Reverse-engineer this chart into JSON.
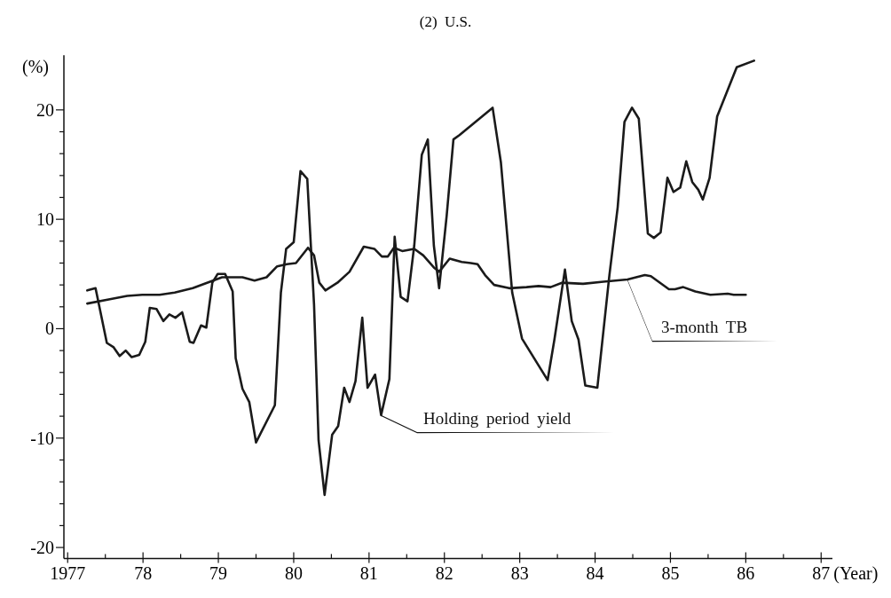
{
  "chart_data": {
    "type": "line",
    "title": "(2)  U.S.",
    "xlabel": "(Year)",
    "ylabel": "(%)",
    "xlim": [
      1976.95,
      1987.15
    ],
    "ylim": [
      -21,
      25
    ],
    "xticks": [
      1977,
      {
        "value": 1977.5,
        "label": null
      },
      {
        "value": 1978,
        "label": "78"
      },
      {
        "value": 1978.5,
        "label": null
      },
      {
        "value": 1979,
        "label": "79"
      },
      {
        "value": 1979.5,
        "label": null
      },
      {
        "value": 1980,
        "label": "80"
      },
      {
        "value": 1980.5,
        "label": null
      },
      {
        "value": 1981,
        "label": "81"
      },
      {
        "value": 1981.5,
        "label": null
      },
      {
        "value": 1982,
        "label": "82"
      },
      {
        "value": 1982.5,
        "label": null
      },
      {
        "value": 1983,
        "label": "83"
      },
      {
        "value": 1983.5,
        "label": null
      },
      {
        "value": 1984,
        "label": "84"
      },
      {
        "value": 1984.5,
        "label": null
      },
      {
        "value": 1985,
        "label": "85"
      },
      {
        "value": 1985.5,
        "label": null
      },
      {
        "value": 1986,
        "label": "86"
      },
      {
        "value": 1986.5,
        "label": null
      },
      {
        "value": 1987,
        "label": "87"
      }
    ],
    "yticks": [
      -20,
      {
        "value": -18,
        "label": null
      },
      {
        "value": -16,
        "label": null
      },
      {
        "value": -14,
        "label": null
      },
      {
        "value": -12,
        "label": null
      },
      -10,
      {
        "value": -8,
        "label": null
      },
      {
        "value": -6,
        "label": null
      },
      {
        "value": -4,
        "label": null
      },
      {
        "value": -2,
        "label": null
      },
      0,
      {
        "value": 2,
        "label": null
      },
      {
        "value": 4,
        "label": null
      },
      {
        "value": 6,
        "label": null
      },
      {
        "value": 8,
        "label": null
      },
      10,
      {
        "value": 12,
        "label": null
      },
      {
        "value": 14,
        "label": null
      },
      {
        "value": 16,
        "label": null
      },
      {
        "value": 18,
        "label": null
      },
      20
    ],
    "grid": false,
    "marker": "none",
    "line_style": "solid",
    "series": [
      {
        "name": "Holding period yield",
        "color": "#1a1a1a",
        "x": [
          1977.26,
          1977.37,
          1977.52,
          1977.61,
          1977.69,
          1977.77,
          1977.85,
          1977.95,
          1978.03,
          1978.09,
          1978.18,
          1978.27,
          1978.35,
          1978.43,
          1978.52,
          1978.62,
          1978.67,
          1978.77,
          1978.84,
          1978.92,
          1978.99,
          1979.09,
          1979.19,
          1979.23,
          1979.32,
          1979.41,
          1979.5,
          1979.75,
          1979.83,
          1979.9,
          1980.0,
          1980.09,
          1980.18,
          1980.27,
          1980.33,
          1980.41,
          1980.51,
          1980.59,
          1980.67,
          1980.74,
          1980.82,
          1980.91,
          1980.98,
          1981.08,
          1981.16,
          1981.27,
          1981.34,
          1981.42,
          1981.51,
          1981.6,
          1981.7,
          1981.78,
          1981.86,
          1981.93,
          1982.03,
          1982.12,
          1982.2,
          1982.64,
          1982.75,
          1982.9,
          1983.03,
          1983.37,
          1983.46,
          1983.6,
          1983.69,
          1983.78,
          1983.87,
          1984.03,
          1984.19,
          1984.3,
          1984.39,
          1984.49,
          1984.58,
          1984.7,
          1984.78,
          1984.87,
          1984.96,
          1985.04,
          1985.13,
          1985.21,
          1985.29,
          1985.37,
          1985.43,
          1985.52,
          1985.62,
          1985.88,
          1986.11
        ],
        "values": [
          3.5,
          3.7,
          -1.3,
          -1.7,
          -2.5,
          -2.0,
          -2.6,
          -2.4,
          -1.2,
          1.9,
          1.8,
          0.7,
          1.3,
          1.0,
          1.5,
          -1.2,
          -1.3,
          0.3,
          0.1,
          4.2,
          5.0,
          5.0,
          3.4,
          -2.7,
          -5.5,
          -6.7,
          -10.4,
          -7.0,
          3.3,
          7.3,
          7.9,
          14.4,
          13.7,
          2.2,
          -10.2,
          -15.2,
          -9.7,
          -8.9,
          -5.4,
          -6.7,
          -4.8,
          1.0,
          -5.4,
          -4.2,
          -7.9,
          -4.6,
          8.4,
          2.9,
          2.5,
          7.6,
          15.9,
          17.3,
          7.6,
          3.7,
          10.3,
          17.3,
          17.7,
          20.2,
          15.2,
          3.3,
          -0.9,
          -4.7,
          -1.0,
          5.4,
          0.7,
          -1.0,
          -5.2,
          -5.4,
          4.9,
          11.1,
          18.9,
          20.2,
          19.2,
          8.7,
          8.3,
          8.8,
          13.8,
          12.5,
          12.9,
          15.3,
          13.4,
          12.7,
          11.8,
          13.8,
          19.4,
          23.9,
          24.5
        ]
      },
      {
        "name": "3-month TB",
        "color": "#1a1a1a",
        "x": [
          1977.26,
          1977.56,
          1977.79,
          1977.99,
          1978.22,
          1978.42,
          1978.66,
          1978.89,
          1979.05,
          1979.32,
          1979.48,
          1979.64,
          1979.78,
          1979.91,
          1980.03,
          1980.19,
          1980.27,
          1980.34,
          1980.42,
          1980.58,
          1980.74,
          1980.93,
          1981.07,
          1981.17,
          1981.25,
          1981.33,
          1981.44,
          1981.6,
          1981.72,
          1981.86,
          1981.93,
          1982.07,
          1982.23,
          1982.35,
          1982.44,
          1982.54,
          1982.66,
          1982.86,
          1983.09,
          1983.25,
          1983.41,
          1983.56,
          1983.84,
          1984.11,
          1984.43,
          1984.66,
          1984.74,
          1984.98,
          1985.06,
          1985.17,
          1985.33,
          1985.53,
          1985.76,
          1985.84,
          1986.0
        ],
        "values": [
          2.3,
          2.7,
          3.0,
          3.1,
          3.1,
          3.3,
          3.7,
          4.3,
          4.7,
          4.7,
          4.4,
          4.7,
          5.7,
          5.9,
          6.0,
          7.4,
          6.7,
          4.2,
          3.5,
          4.2,
          5.2,
          7.5,
          7.3,
          6.6,
          6.6,
          7.4,
          7.1,
          7.3,
          6.7,
          5.6,
          5.2,
          6.4,
          6.1,
          6.0,
          5.9,
          4.9,
          4.0,
          3.7,
          3.8,
          3.9,
          3.8,
          4.2,
          4.1,
          4.3,
          4.5,
          4.9,
          4.8,
          3.6,
          3.6,
          3.8,
          3.4,
          3.1,
          3.2,
          3.1,
          3.1
        ]
      }
    ]
  }
}
